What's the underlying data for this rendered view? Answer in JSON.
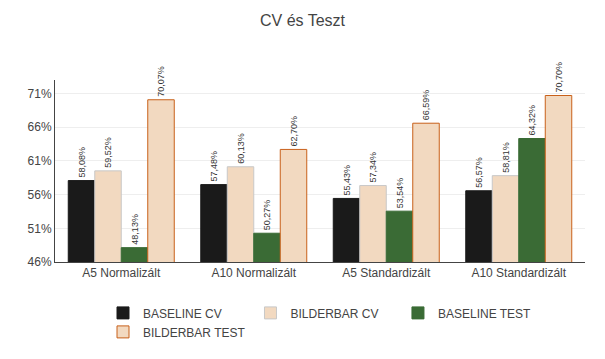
{
  "chart_data": {
    "type": "bar",
    "title": "CV és Teszt",
    "categories": [
      "A5 Normalizált",
      "A10 Normalizált",
      "A5 Standardizált",
      "A10 Standardizált"
    ],
    "series": [
      {
        "name": "BASELINE CV",
        "color": "#1a1a1a",
        "values": [
          58.08,
          57.48,
          55.43,
          56.57
        ],
        "value_labels": [
          "58,08%",
          "57,48%",
          "55,43%",
          "56,57%"
        ]
      },
      {
        "name": "BILDERBAR CV",
        "color": "#f2d9c0",
        "values": [
          59.52,
          60.13,
          57.34,
          58.81
        ],
        "value_labels": [
          "59,52%",
          "60,13%",
          "57,34%",
          "58,81%"
        ]
      },
      {
        "name": "BASELINE TEST",
        "color": "#3a6b35",
        "values": [
          48.13,
          50.27,
          53.54,
          64.32
        ],
        "value_labels": [
          "48,13%",
          "50,27%",
          "53,54%",
          "64,32%"
        ]
      },
      {
        "name": "BILDERBAR TEST",
        "color": "#f2d9c0",
        "values": [
          70.07,
          62.7,
          66.59,
          70.7
        ],
        "value_labels": [
          "70,07%",
          "62,70%",
          "66,59%",
          "70,70%"
        ]
      }
    ],
    "ylim": [
      46,
      73
    ],
    "yticks": [
      {
        "value": 46,
        "label": "46%"
      },
      {
        "value": 51,
        "label": "51%"
      },
      {
        "value": 56,
        "label": "56%"
      },
      {
        "value": 61,
        "label": "61%"
      },
      {
        "value": 66,
        "label": "66%"
      },
      {
        "value": 71,
        "label": "71%"
      }
    ],
    "grid": true,
    "data_labels": true,
    "legend": "bottom"
  }
}
